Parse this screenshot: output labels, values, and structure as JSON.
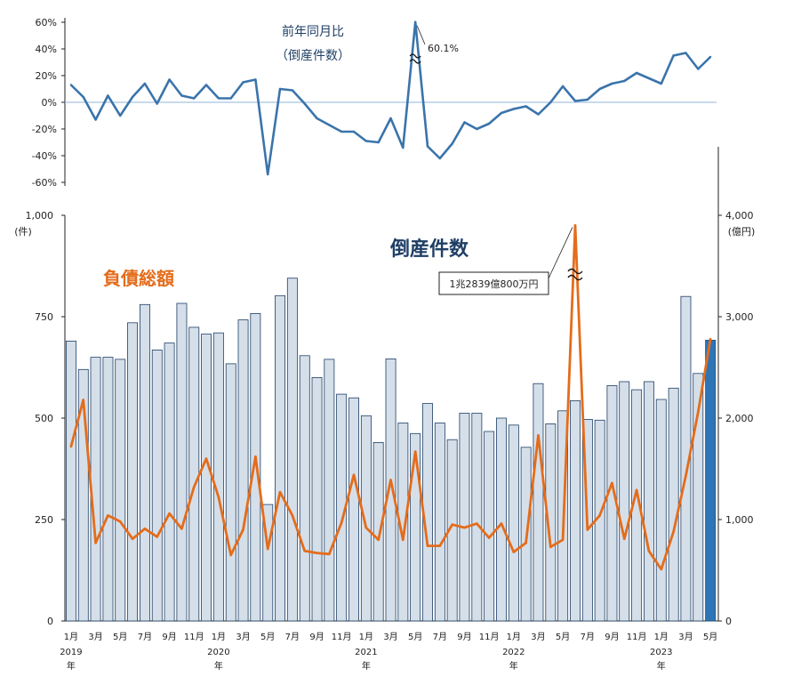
{
  "chart_data": {
    "type": "bar+line",
    "yoy": {
      "title_line1": "前年同月比",
      "title_line2": "（倒産件数）",
      "yticks": [
        "60%",
        "40%",
        "20%",
        "0%",
        "-20%",
        "-40%",
        "-60%"
      ],
      "ylim": [
        -60,
        60
      ],
      "peak_label": "60.1%",
      "values": [
        13,
        4,
        -13,
        5,
        -10,
        4,
        14,
        -1,
        17,
        5,
        3,
        13,
        3,
        3,
        15,
        17,
        -54,
        10,
        9,
        -1,
        -12,
        -17,
        -22,
        -22,
        -29,
        -30,
        -12,
        -34,
        60.1,
        -33,
        -42,
        -31,
        -15,
        -20,
        -16,
        -8,
        -5,
        -3,
        -9,
        0,
        12,
        1,
        2,
        10,
        14,
        16,
        22,
        18,
        14,
        35,
        37,
        25,
        34
      ]
    },
    "count": {
      "title": "倒産件数",
      "ylabel": "(件)",
      "yticks": [
        "1,000",
        "750",
        "500",
        "250",
        "0"
      ],
      "ylim": [
        0,
        1000
      ],
      "values": [
        690,
        620,
        650,
        650,
        645,
        735,
        780,
        668,
        685,
        783,
        724,
        707,
        710,
        634,
        742,
        758,
        287,
        802,
        845,
        654,
        600,
        645,
        559,
        550,
        506,
        440,
        646,
        488,
        462,
        536,
        488,
        447,
        512,
        512,
        467,
        500,
        483,
        428,
        585,
        486,
        518,
        543,
        497,
        495,
        580,
        590,
        570,
        590,
        546,
        574,
        800,
        610,
        692
      ]
    },
    "debt": {
      "title": "負債総額",
      "ylabel": "(億円)",
      "yticks": [
        "4,000",
        "3,000",
        "2,000",
        "1,000",
        "0"
      ],
      "ylim": [
        0,
        4000
      ],
      "annotation": "1兆2839億800万円",
      "values": [
        1720,
        2180,
        770,
        1040,
        980,
        810,
        910,
        830,
        1060,
        910,
        1320,
        1600,
        1220,
        650,
        900,
        1620,
        710,
        1270,
        1040,
        690,
        670,
        660,
        970,
        1440,
        920,
        800,
        1390,
        800,
        1670,
        740,
        740,
        950,
        920,
        960,
        820,
        960,
        680,
        770,
        1830,
        730,
        800,
        3900,
        900,
        1040,
        1360,
        810,
        1290,
        690,
        510,
        880,
        1430,
        2060,
        2780
      ]
    },
    "months": [
      "1月",
      "3月",
      "5月",
      "7月",
      "9月",
      "11月",
      "1月",
      "3月",
      "5月",
      "7月",
      "9月",
      "11月",
      "1月",
      "3月",
      "5月",
      "7月",
      "9月",
      "11月",
      "1月",
      "3月",
      "5月",
      "7月",
      "9月",
      "11月",
      "1月",
      "3月",
      "5月"
    ],
    "years": [
      "2019",
      "2020",
      "2021",
      "2022",
      "2023"
    ],
    "year_suffix": "年"
  }
}
